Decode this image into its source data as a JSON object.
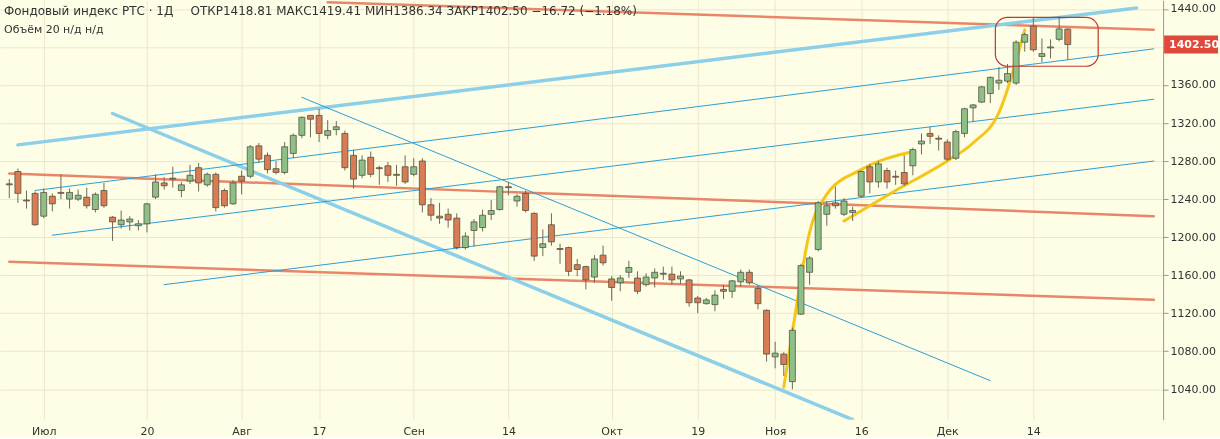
{
  "chart_data": {
    "type": "candlestick",
    "title": "Фондовый индекс РТС · 1Д",
    "subtitle": "ОТКР1418.81 МАКС1419.41 МИН1386.34 ЗАКР1402.50 −16.72 (−1.18%)",
    "annotations": [
      "Объём 20  н/д н/д",
      "1402.50"
    ],
    "categories": [
      null,
      null,
      null,
      null,
      "Июл",
      null,
      null,
      null,
      null,
      null,
      null,
      null,
      null,
      null,
      null,
      null,
      "20",
      null,
      null,
      null,
      null,
      null,
      null,
      null,
      null,
      null,
      null,
      "Авг",
      null,
      null,
      null,
      null,
      null,
      null,
      null,
      null,
      "17",
      null,
      null,
      null,
      null,
      null,
      null,
      null,
      null,
      null,
      null,
      "Сен",
      null,
      null,
      null,
      null,
      null,
      null,
      null,
      null,
      null,
      null,
      "14",
      null,
      null,
      null,
      null,
      null,
      null,
      null,
      null,
      null,
      null,
      null,
      "Окт",
      null,
      null,
      null,
      null,
      null,
      null,
      null,
      null,
      null,
      "19",
      null,
      null,
      null,
      null,
      null,
      null,
      null,
      null,
      "Ноя",
      null,
      null,
      null,
      null,
      null,
      null,
      null,
      null,
      null,
      "16",
      null,
      null,
      null,
      null,
      null,
      null,
      null,
      null,
      null,
      "Дек",
      null,
      null,
      null,
      null,
      null,
      null,
      null,
      null,
      null,
      "14",
      null,
      null,
      null,
      null,
      null,
      null,
      null,
      null,
      null,
      null,
      null,
      null,
      null,
      null
    ],
    "ohlc": [
      [
        1256,
        1261,
        1241,
        1255
      ],
      [
        1269,
        1272,
        1236,
        1246
      ],
      [
        1239,
        1249,
        1230,
        1238
      ],
      [
        1246,
        1248,
        1212,
        1213
      ],
      [
        1222,
        1251,
        1220,
        1247
      ],
      [
        1243,
        1246,
        1227,
        1235
      ],
      [
        1247,
        1266,
        1240,
        1246
      ],
      [
        1240,
        1251,
        1230,
        1247
      ],
      [
        1240,
        1250,
        1238,
        1244
      ],
      [
        1242,
        1252,
        1230,
        1233
      ],
      [
        1229,
        1247,
        1226,
        1245
      ],
      [
        1249,
        1257,
        1231,
        1233
      ],
      [
        1221,
        1222,
        1196,
        1216
      ],
      [
        1213,
        1228,
        1209,
        1218
      ],
      [
        1216,
        1222,
        1207,
        1219
      ],
      [
        1212,
        1218,
        1207,
        1214
      ],
      [
        1214,
        1236,
        1205,
        1235
      ],
      [
        1242,
        1266,
        1240,
        1258
      ],
      [
        1257,
        1263,
        1250,
        1254
      ],
      [
        1261,
        1274,
        1252,
        1262
      ],
      [
        1249,
        1258,
        1242,
        1255
      ],
      [
        1259,
        1276,
        1256,
        1265
      ],
      [
        1273,
        1278,
        1248,
        1257
      ],
      [
        1255,
        1268,
        1253,
        1266
      ],
      [
        1266,
        1268,
        1227,
        1231
      ],
      [
        1249,
        1251,
        1231,
        1233
      ],
      [
        1235,
        1260,
        1234,
        1257
      ],
      [
        1264,
        1270,
        1245,
        1259
      ],
      [
        1264,
        1297,
        1262,
        1295
      ],
      [
        1296,
        1299,
        1278,
        1282
      ],
      [
        1286,
        1289,
        1267,
        1271
      ],
      [
        1272,
        1280,
        1266,
        1268
      ],
      [
        1268,
        1300,
        1266,
        1295
      ],
      [
        1288,
        1309,
        1283,
        1307
      ],
      [
        1307,
        1327,
        1304,
        1326
      ],
      [
        1328,
        1328,
        1305,
        1324
      ],
      [
        1328,
        1335,
        1300,
        1309
      ],
      [
        1307,
        1323,
        1303,
        1312
      ],
      [
        1313,
        1322,
        1307,
        1316
      ],
      [
        1309,
        1312,
        1270,
        1273
      ],
      [
        1286,
        1292,
        1251,
        1261
      ],
      [
        1265,
        1286,
        1262,
        1281
      ],
      [
        1284,
        1290,
        1263,
        1266
      ],
      [
        1273,
        1275,
        1255,
        1272
      ],
      [
        1275,
        1279,
        1258,
        1265
      ],
      [
        1266,
        1276,
        1254,
        1265
      ],
      [
        1274,
        1286,
        1256,
        1258
      ],
      [
        1266,
        1283,
        1264,
        1274
      ],
      [
        1280,
        1283,
        1226,
        1234
      ],
      [
        1234,
        1241,
        1217,
        1223
      ],
      [
        1222,
        1236,
        1214,
        1220
      ],
      [
        1224,
        1230,
        1210,
        1218
      ],
      [
        1220,
        1225,
        1187,
        1189
      ],
      [
        1189,
        1205,
        1187,
        1201
      ],
      [
        1207,
        1219,
        1190,
        1216
      ],
      [
        1210,
        1229,
        1206,
        1223
      ],
      [
        1224,
        1239,
        1218,
        1228
      ],
      [
        1229,
        1254,
        1228,
        1253
      ],
      [
        1253,
        1258,
        1244,
        1252
      ],
      [
        1238,
        1245,
        1232,
        1243
      ],
      [
        1246,
        1249,
        1226,
        1228
      ],
      [
        1225,
        1226,
        1175,
        1180
      ],
      [
        1189,
        1208,
        1180,
        1193
      ],
      [
        1213,
        1225,
        1191,
        1195
      ],
      [
        1188,
        1193,
        1172,
        1187
      ],
      [
        1189,
        1190,
        1159,
        1164
      ],
      [
        1171,
        1177,
        1159,
        1166
      ],
      [
        1169,
        1170,
        1145,
        1155
      ],
      [
        1158,
        1181,
        1152,
        1177
      ],
      [
        1181,
        1191,
        1170,
        1173
      ],
      [
        1156,
        1159,
        1133,
        1147
      ],
      [
        1152,
        1160,
        1143,
        1157
      ],
      [
        1163,
        1175,
        1157,
        1168
      ],
      [
        1157,
        1164,
        1140,
        1143
      ],
      [
        1150,
        1162,
        1148,
        1158
      ],
      [
        1157,
        1167,
        1147,
        1163
      ],
      [
        1162,
        1169,
        1155,
        1161
      ],
      [
        1161,
        1169,
        1150,
        1155
      ],
      [
        1156,
        1164,
        1151,
        1159
      ],
      [
        1155,
        1156,
        1127,
        1131
      ],
      [
        1136,
        1138,
        1120,
        1131
      ],
      [
        1130,
        1136,
        1129,
        1134
      ],
      [
        1129,
        1144,
        1122,
        1139
      ],
      [
        1145,
        1150,
        1135,
        1143
      ],
      [
        1143,
        1155,
        1136,
        1154
      ],
      [
        1153,
        1166,
        1148,
        1163
      ],
      [
        1163,
        1166,
        1150,
        1152
      ],
      [
        1146,
        1149,
        1124,
        1130
      ],
      [
        1123,
        1124,
        1069,
        1077
      ],
      [
        1074,
        1090,
        1062,
        1078
      ],
      [
        1077,
        1079,
        1054,
        1066
      ],
      [
        1048,
        1105,
        1040,
        1102
      ],
      [
        1119,
        1172,
        1118,
        1170
      ],
      [
        1163,
        1180,
        1150,
        1178
      ],
      [
        1187,
        1238,
        1185,
        1236
      ],
      [
        1224,
        1238,
        1212,
        1233
      ],
      [
        1236,
        1253,
        1230,
        1233
      ],
      [
        1224,
        1241,
        1222,
        1238
      ],
      [
        1226,
        1232,
        1217,
        1228
      ],
      [
        1243,
        1270,
        1242,
        1269
      ],
      [
        1274,
        1277,
        1246,
        1258
      ],
      [
        1258,
        1280,
        1252,
        1277
      ],
      [
        1270,
        1273,
        1251,
        1258
      ],
      [
        1264,
        1270,
        1255,
        1263
      ],
      [
        1268,
        1286,
        1254,
        1256
      ],
      [
        1275,
        1294,
        1265,
        1292
      ],
      [
        1298,
        1309,
        1287,
        1301
      ],
      [
        1309,
        1316,
        1298,
        1306
      ],
      [
        1304,
        1307,
        1291,
        1303
      ],
      [
        1300,
        1303,
        1280,
        1282
      ],
      [
        1283,
        1313,
        1281,
        1311
      ],
      [
        1309,
        1336,
        1305,
        1335
      ],
      [
        1336,
        1340,
        1321,
        1339
      ],
      [
        1342,
        1359,
        1341,
        1358
      ],
      [
        1351,
        1369,
        1341,
        1368
      ],
      [
        1362,
        1379,
        1355,
        1365
      ],
      [
        1364,
        1382,
        1362,
        1372
      ],
      [
        1362,
        1407,
        1360,
        1405
      ],
      [
        1405,
        1415,
        1395,
        1413
      ],
      [
        1422,
        1431,
        1395,
        1397
      ],
      [
        1390,
        1409,
        1384,
        1393
      ],
      [
        1399,
        1408,
        1388,
        1400
      ],
      [
        1408,
        1432,
        1406,
        1419
      ],
      [
        1418.81,
        1419.41,
        1386.34,
        1402.5
      ],
      null,
      null,
      null,
      null,
      null,
      null,
      null,
      null,
      null,
      null
    ],
    "colors": [
      "#d97c55",
      "#d97c55",
      "#d97c55",
      "#d97c55",
      "#8dbf86",
      "#d97c55",
      "#d97c55",
      "#8dbf86",
      "#8dbf86",
      "#d97c55",
      "#8dbf86",
      "#d97c55",
      "#d97c55",
      "#8dbf86",
      "#8dbf86",
      "#8dbf86",
      "#8dbf86",
      "#8dbf86",
      "#d97c55",
      "#8dbf86",
      "#8dbf86",
      "#8dbf86",
      "#d97c55",
      "#8dbf86",
      "#d97c55",
      "#d97c55",
      "#8dbf86",
      "#d97c55",
      "#8dbf86",
      "#d97c55",
      "#d97c55",
      "#d97c55",
      "#8dbf86",
      "#8dbf86",
      "#8dbf86",
      "#d97c55",
      "#d97c55",
      "#8dbf86",
      "#8dbf86",
      "#d97c55",
      "#d97c55",
      "#8dbf86",
      "#d97c55",
      "#d97c55",
      "#d97c55",
      "#d97c55",
      "#d97c55",
      "#8dbf86",
      "#d97c55",
      "#d97c55",
      "#d97c55",
      "#d97c55",
      "#d97c55",
      "#8dbf86",
      "#8dbf86",
      "#8dbf86",
      "#8dbf86",
      "#8dbf86",
      "#d97c55",
      "#8dbf86",
      "#d97c55",
      "#d97c55",
      "#8dbf86",
      "#d97c55",
      "#d97c55",
      "#d97c55",
      "#d97c55",
      "#d97c55",
      "#8dbf86",
      "#d97c55",
      "#d97c55",
      "#8dbf86",
      "#8dbf86",
      "#d97c55",
      "#8dbf86",
      "#8dbf86",
      "#d97c55",
      "#d97c55",
      "#8dbf86",
      "#d97c55",
      "#d97c55",
      "#8dbf86",
      "#8dbf86",
      "#d97c55",
      "#8dbf86",
      "#8dbf86",
      "#d97c55",
      "#d97c55",
      "#d97c55",
      "#8dbf86",
      "#d97c55",
      "#8dbf86",
      "#8dbf86",
      "#8dbf86",
      "#8dbf86",
      "#8dbf86",
      "#d97c55",
      "#8dbf86",
      "#8dbf86",
      "#8dbf86",
      "#d97c55",
      "#8dbf86",
      "#d97c55",
      "#d97c55",
      "#d97c55",
      "#8dbf86",
      "#8dbf86",
      "#d97c55",
      "#d97c55",
      "#d97c55",
      "#8dbf86",
      "#8dbf86",
      "#8dbf86",
      "#8dbf86",
      "#8dbf86",
      "#8dbf86",
      "#8dbf86",
      "#8dbf86",
      "#8dbf86",
      "#d97c55",
      "#8dbf86",
      "#8dbf86",
      "#8dbf86",
      "#d97c55",
      null,
      null,
      null,
      null,
      null,
      null,
      null,
      null,
      null,
      null
    ],
    "series": [
      {
        "type": "line",
        "color": "#e8866a",
        "values": [
          null,
          null,
          null,
          null,
          null,
          null,
          null,
          null,
          null,
          null,
          null,
          null,
          null,
          null,
          null,
          null,
          null,
          null,
          null,
          null,
          null,
          null,
          null,
          null,
          null,
          null,
          null,
          null,
          null,
          null,
          null,
          null,
          null,
          null,
          null,
          null,
          null,
          1447,
          null,
          null,
          null,
          null,
          null,
          null,
          null,
          null,
          null,
          null,
          null,
          null,
          null,
          null,
          null,
          null,
          null,
          null,
          null,
          null,
          null,
          null,
          null,
          null,
          null,
          null,
          null,
          null,
          null,
          null,
          null,
          null,
          null,
          null,
          null,
          null,
          null,
          null,
          null,
          null,
          null,
          null,
          null,
          null,
          null,
          null,
          null,
          null,
          null,
          null,
          null,
          null,
          null,
          null,
          null,
          null,
          null,
          null,
          null,
          null,
          null,
          null,
          null,
          null,
          null,
          null,
          null,
          null,
          null,
          null,
          null,
          null,
          null,
          null,
          null,
          null,
          null,
          null,
          null,
          null,
          null,
          null,
          null,
          null,
          null,
          null,
          null,
          null,
          null,
          null,
          null,
          null,
          null,
          null,
          null,
          1418
        ]
      },
      {
        "type": "line",
        "color": "#e8866a",
        "values": [
          1267,
          null,
          null,
          null,
          null,
          null,
          null,
          null,
          null,
          null,
          null,
          null,
          null,
          null,
          null,
          null,
          null,
          null,
          null,
          null,
          null,
          null,
          null,
          null,
          null,
          null,
          null,
          null,
          null,
          null,
          null,
          null,
          null,
          null,
          null,
          null,
          null,
          null,
          null,
          null,
          null,
          null,
          null,
          null,
          null,
          null,
          null,
          null,
          null,
          null,
          null,
          null,
          null,
          null,
          null,
          null,
          null,
          null,
          null,
          null,
          null,
          null,
          null,
          null,
          null,
          null,
          null,
          null,
          null,
          null,
          null,
          null,
          null,
          null,
          null,
          null,
          null,
          null,
          null,
          null,
          null,
          null,
          null,
          null,
          null,
          null,
          null,
          null,
          null,
          null,
          null,
          null,
          null,
          null,
          null,
          null,
          null,
          null,
          null,
          null,
          null,
          null,
          null,
          null,
          null,
          null,
          null,
          null,
          null,
          null,
          null,
          null,
          null,
          null,
          null,
          null,
          null,
          null,
          null,
          null,
          null,
          null,
          null,
          null,
          null,
          null,
          null,
          null,
          null,
          null,
          null,
          null,
          null,
          1222
        ]
      },
      {
        "type": "line",
        "color": "#e8866a",
        "values": [
          1174,
          null,
          null,
          null,
          null,
          null,
          null,
          null,
          null,
          null,
          null,
          null,
          null,
          null,
          null,
          null,
          null,
          null,
          null,
          null,
          null,
          null,
          null,
          null,
          null,
          null,
          null,
          null,
          null,
          null,
          null,
          null,
          null,
          null,
          null,
          null,
          null,
          null,
          null,
          null,
          null,
          null,
          null,
          null,
          null,
          null,
          null,
          null,
          null,
          null,
          null,
          null,
          null,
          null,
          null,
          null,
          null,
          null,
          null,
          null,
          null,
          null,
          null,
          null,
          null,
          null,
          null,
          null,
          null,
          null,
          null,
          null,
          null,
          null,
          null,
          null,
          null,
          null,
          null,
          null,
          null,
          null,
          null,
          null,
          null,
          null,
          null,
          null,
          null,
          null,
          null,
          null,
          null,
          null,
          null,
          null,
          null,
          null,
          null,
          null,
          null,
          null,
          null,
          null,
          null,
          null,
          null,
          null,
          null,
          null,
          null,
          null,
          null,
          null,
          null,
          null,
          null,
          null,
          null,
          null,
          null,
          null,
          null,
          null,
          null,
          null,
          null,
          null,
          null,
          null,
          null,
          null,
          null,
          1134
        ]
      },
      {
        "type": "line",
        "color": "#8ccfe8",
        "values": [
          null,
          1297,
          null,
          null,
          null,
          null,
          null,
          null,
          null,
          null,
          null,
          null,
          null,
          null,
          null,
          null,
          null,
          null,
          null,
          null,
          null,
          null,
          null,
          null,
          null,
          null,
          null,
          null,
          null,
          null,
          null,
          null,
          null,
          null,
          null,
          null,
          null,
          null,
          null,
          null,
          null,
          null,
          null,
          null,
          null,
          null,
          null,
          null,
          null,
          null,
          null,
          null,
          null,
          null,
          null,
          null,
          null,
          null,
          null,
          null,
          null,
          null,
          null,
          null,
          null,
          null,
          null,
          null,
          null,
          null,
          null,
          null,
          null,
          null,
          null,
          null,
          null,
          null,
          null,
          null,
          null,
          null,
          null,
          null,
          null,
          null,
          null,
          null,
          null,
          null,
          null,
          null,
          null,
          null,
          null,
          null,
          null,
          null,
          null,
          null,
          null,
          null,
          null,
          null,
          null,
          null,
          null,
          null,
          null,
          null,
          null,
          null,
          null,
          null,
          null,
          null,
          null,
          null,
          null,
          null,
          null,
          null,
          null,
          null,
          null,
          null,
          null,
          null,
          null,
          null,
          null,
          1441,
          null,
          null
        ]
      },
      {
        "type": "line",
        "color": "#8ccfe8",
        "values": [
          null,
          null,
          null,
          null,
          null,
          null,
          null,
          null,
          null,
          null,
          null,
          null,
          1330,
          null,
          null,
          null,
          null,
          null,
          null,
          null,
          null,
          null,
          null,
          null,
          null,
          null,
          null,
          null,
          null,
          null,
          null,
          null,
          null,
          null,
          null,
          null,
          null,
          null,
          null,
          null,
          null,
          null,
          null,
          null,
          null,
          null,
          null,
          null,
          null,
          null,
          null,
          null,
          null,
          null,
          null,
          null,
          null,
          null,
          null,
          null,
          null,
          null,
          null,
          null,
          null,
          null,
          null,
          null,
          null,
          null,
          null,
          null,
          null,
          null,
          null,
          null,
          null,
          null,
          null,
          null,
          null,
          null,
          null,
          null,
          null,
          null,
          null,
          null,
          null,
          null,
          null,
          null,
          null,
          null,
          null,
          null,
          null,
          null,
          1008,
          null,
          null,
          null,
          null,
          null,
          null,
          null,
          null,
          null,
          null,
          null,
          null,
          null,
          null,
          null,
          null,
          null,
          null,
          null,
          null,
          null,
          null,
          null,
          null,
          null,
          null,
          null,
          null,
          null,
          null,
          null,
          null,
          null,
          null,
          null
        ]
      },
      {
        "type": "line",
        "color": "#2a9fd6",
        "values": [
          null,
          null,
          null,
          1249,
          null,
          null,
          null,
          null,
          null,
          null,
          null,
          null,
          null,
          null,
          null,
          null,
          null,
          null,
          null,
          null,
          null,
          null,
          null,
          null,
          null,
          null,
          null,
          null,
          null,
          null,
          null,
          null,
          null,
          null,
          null,
          null,
          null,
          null,
          null,
          null,
          null,
          null,
          null,
          null,
          null,
          null,
          null,
          null,
          null,
          null,
          null,
          null,
          null,
          null,
          null,
          null,
          null,
          null,
          null,
          null,
          null,
          null,
          null,
          null,
          null,
          null,
          null,
          null,
          null,
          null,
          null,
          null,
          null,
          null,
          null,
          null,
          null,
          null,
          null,
          null,
          null,
          null,
          null,
          null,
          null,
          null,
          null,
          null,
          null,
          null,
          null,
          null,
          null,
          null,
          null,
          null,
          null,
          null,
          null,
          null,
          null,
          null,
          null,
          null,
          null,
          null,
          null,
          null,
          null,
          null,
          null,
          null,
          null,
          null,
          null,
          null,
          null,
          null,
          null,
          null,
          null,
          null,
          null,
          null,
          null,
          null,
          null,
          null,
          null,
          null,
          null,
          null,
          null,
          1398
        ]
      },
      {
        "type": "line",
        "color": "#2a9fd6",
        "values": [
          null,
          null,
          null,
          null,
          null,
          1202,
          null,
          null,
          null,
          null,
          null,
          null,
          null,
          null,
          null,
          null,
          null,
          null,
          null,
          null,
          null,
          null,
          null,
          null,
          null,
          null,
          null,
          null,
          null,
          null,
          null,
          null,
          null,
          null,
          null,
          null,
          null,
          null,
          null,
          null,
          null,
          null,
          null,
          null,
          null,
          null,
          null,
          null,
          null,
          null,
          null,
          null,
          null,
          null,
          null,
          null,
          null,
          null,
          null,
          null,
          null,
          null,
          null,
          null,
          null,
          null,
          null,
          null,
          null,
          null,
          null,
          null,
          null,
          null,
          null,
          null,
          null,
          null,
          null,
          null,
          null,
          null,
          null,
          null,
          null,
          null,
          null,
          null,
          null,
          null,
          null,
          null,
          null,
          null,
          null,
          null,
          null,
          null,
          null,
          null,
          null,
          null,
          null,
          null,
          null,
          null,
          null,
          null,
          null,
          null,
          null,
          null,
          null,
          null,
          null,
          null,
          null,
          null,
          null,
          null,
          null,
          null,
          null,
          null,
          null,
          null,
          null,
          null,
          null,
          null,
          null,
          null,
          null,
          1345
        ]
      },
      {
        "type": "line",
        "color": "#2a9fd6",
        "values": [
          null,
          null,
          null,
          null,
          null,
          null,
          null,
          null,
          null,
          null,
          null,
          null,
          null,
          null,
          null,
          null,
          null,
          null,
          1150,
          null,
          null,
          null,
          null,
          null,
          null,
          null,
          null,
          null,
          null,
          null,
          null,
          null,
          null,
          null,
          null,
          null,
          null,
          null,
          null,
          null,
          null,
          null,
          null,
          null,
          null,
          null,
          null,
          null,
          null,
          null,
          null,
          null,
          null,
          null,
          null,
          null,
          null,
          null,
          null,
          null,
          null,
          null,
          null,
          null,
          null,
          null,
          null,
          null,
          null,
          null,
          null,
          null,
          null,
          null,
          null,
          null,
          null,
          null,
          null,
          null,
          null,
          null,
          null,
          null,
          null,
          null,
          null,
          null,
          null,
          null,
          null,
          null,
          null,
          null,
          null,
          null,
          null,
          null,
          null,
          null,
          null,
          null,
          null,
          null,
          null,
          null,
          null,
          null,
          null,
          null,
          null,
          null,
          null,
          null,
          null,
          null,
          null,
          null,
          null,
          null,
          null,
          null,
          null,
          null,
          null,
          null,
          null,
          null,
          null,
          null,
          null,
          null,
          null,
          1280
        ]
      },
      {
        "type": "line",
        "color": "#2a9fd6",
        "values": [
          null,
          null,
          null,
          null,
          null,
          null,
          null,
          null,
          null,
          null,
          null,
          null,
          null,
          null,
          null,
          null,
          null,
          null,
          null,
          null,
          null,
          null,
          null,
          null,
          null,
          null,
          null,
          null,
          null,
          null,
          null,
          null,
          null,
          null,
          1347,
          null,
          null,
          null,
          null,
          null,
          null,
          null,
          null,
          null,
          null,
          null,
          null,
          null,
          null,
          null,
          null,
          null,
          null,
          null,
          null,
          null,
          null,
          null,
          null,
          null,
          null,
          null,
          null,
          null,
          null,
          null,
          null,
          null,
          null,
          null,
          null,
          null,
          null,
          null,
          null,
          null,
          null,
          null,
          null,
          null,
          null,
          null,
          null,
          null,
          null,
          null,
          null,
          null,
          null,
          null,
          null,
          null,
          null,
          null,
          null,
          null,
          null,
          null,
          null,
          null,
          null,
          null,
          null,
          null,
          null,
          null,
          null,
          null,
          null,
          null,
          null,
          null,
          null,
          null,
          1049,
          null,
          null,
          null,
          null,
          null,
          null,
          null,
          null,
          null,
          null,
          null,
          null,
          null,
          null,
          null,
          null,
          null,
          null,
          null
        ]
      },
      {
        "type": "line",
        "color": "#f5c518",
        "values": [
          null,
          null,
          null,
          null,
          null,
          null,
          null,
          null,
          null,
          null,
          null,
          null,
          null,
          null,
          null,
          null,
          null,
          null,
          null,
          null,
          null,
          null,
          null,
          null,
          null,
          null,
          null,
          null,
          null,
          null,
          null,
          null,
          null,
          null,
          null,
          null,
          null,
          null,
          null,
          null,
          null,
          null,
          null,
          null,
          null,
          null,
          null,
          null,
          null,
          null,
          null,
          null,
          null,
          null,
          null,
          null,
          null,
          null,
          null,
          null,
          null,
          null,
          null,
          null,
          null,
          null,
          null,
          null,
          null,
          null,
          null,
          null,
          null,
          null,
          null,
          null,
          null,
          null,
          null,
          null,
          null,
          null,
          null,
          null,
          null,
          null,
          null,
          null,
          null,
          null,
          1042,
          1100,
          null,
          1205,
          null,
          1245,
          null,
          null,
          null,
          1271,
          null,
          null,
          null,
          null,
          null,
          1290,
          null,
          null,
          null,
          null,
          null,
          null,
          null,
          null,
          null,
          null,
          null,
          null,
          null,
          null,
          null,
          null,
          null,
          null,
          null,
          null,
          null,
          null,
          null,
          null,
          null,
          null,
          null,
          null
        ]
      },
      {
        "type": "line",
        "color": "#f5c518",
        "values": [
          null,
          null,
          null,
          null,
          null,
          null,
          null,
          null,
          null,
          null,
          null,
          null,
          null,
          null,
          null,
          null,
          null,
          null,
          null,
          null,
          null,
          null,
          null,
          null,
          null,
          null,
          null,
          null,
          null,
          null,
          null,
          null,
          null,
          null,
          null,
          null,
          null,
          null,
          null,
          null,
          null,
          null,
          null,
          null,
          null,
          null,
          null,
          null,
          null,
          null,
          null,
          null,
          null,
          null,
          null,
          null,
          null,
          null,
          null,
          null,
          null,
          null,
          null,
          null,
          null,
          null,
          null,
          null,
          null,
          null,
          null,
          null,
          null,
          null,
          null,
          null,
          null,
          null,
          null,
          null,
          null,
          null,
          null,
          null,
          null,
          null,
          null,
          null,
          null,
          null,
          null,
          null,
          null,
          null,
          null,
          null,
          null,
          1217,
          null,
          null,
          null,
          null,
          null,
          1249,
          null,
          null,
          null,
          null,
          null,
          1280,
          null,
          null,
          1299,
          null,
          null,
          1331,
          null,
          null,
          1418,
          null,
          null,
          null,
          null,
          null,
          null,
          null,
          null,
          null,
          null,
          null,
          null,
          null,
          null,
          null
        ]
      }
    ],
    "ylim": [
      1008,
      1449
    ],
    "yticks": [
      {
        "value": 1040,
        "label": "1040.00"
      },
      {
        "value": 1080,
        "label": "1080.00"
      },
      {
        "value": 1120,
        "label": "1120.00"
      },
      {
        "value": 1160,
        "label": "1160.00"
      },
      {
        "value": 1200,
        "label": "1200.00"
      },
      {
        "value": 1240,
        "label": "1240.00"
      },
      {
        "value": 1280,
        "label": "1280.00"
      },
      {
        "value": 1320,
        "label": "1320.00"
      },
      {
        "value": 1360,
        "label": "1360.00"
      },
      {
        "value": 1400,
        "label": null
      },
      {
        "value": 1440,
        "label": "1440.00"
      }
    ],
    "grid": true
  }
}
